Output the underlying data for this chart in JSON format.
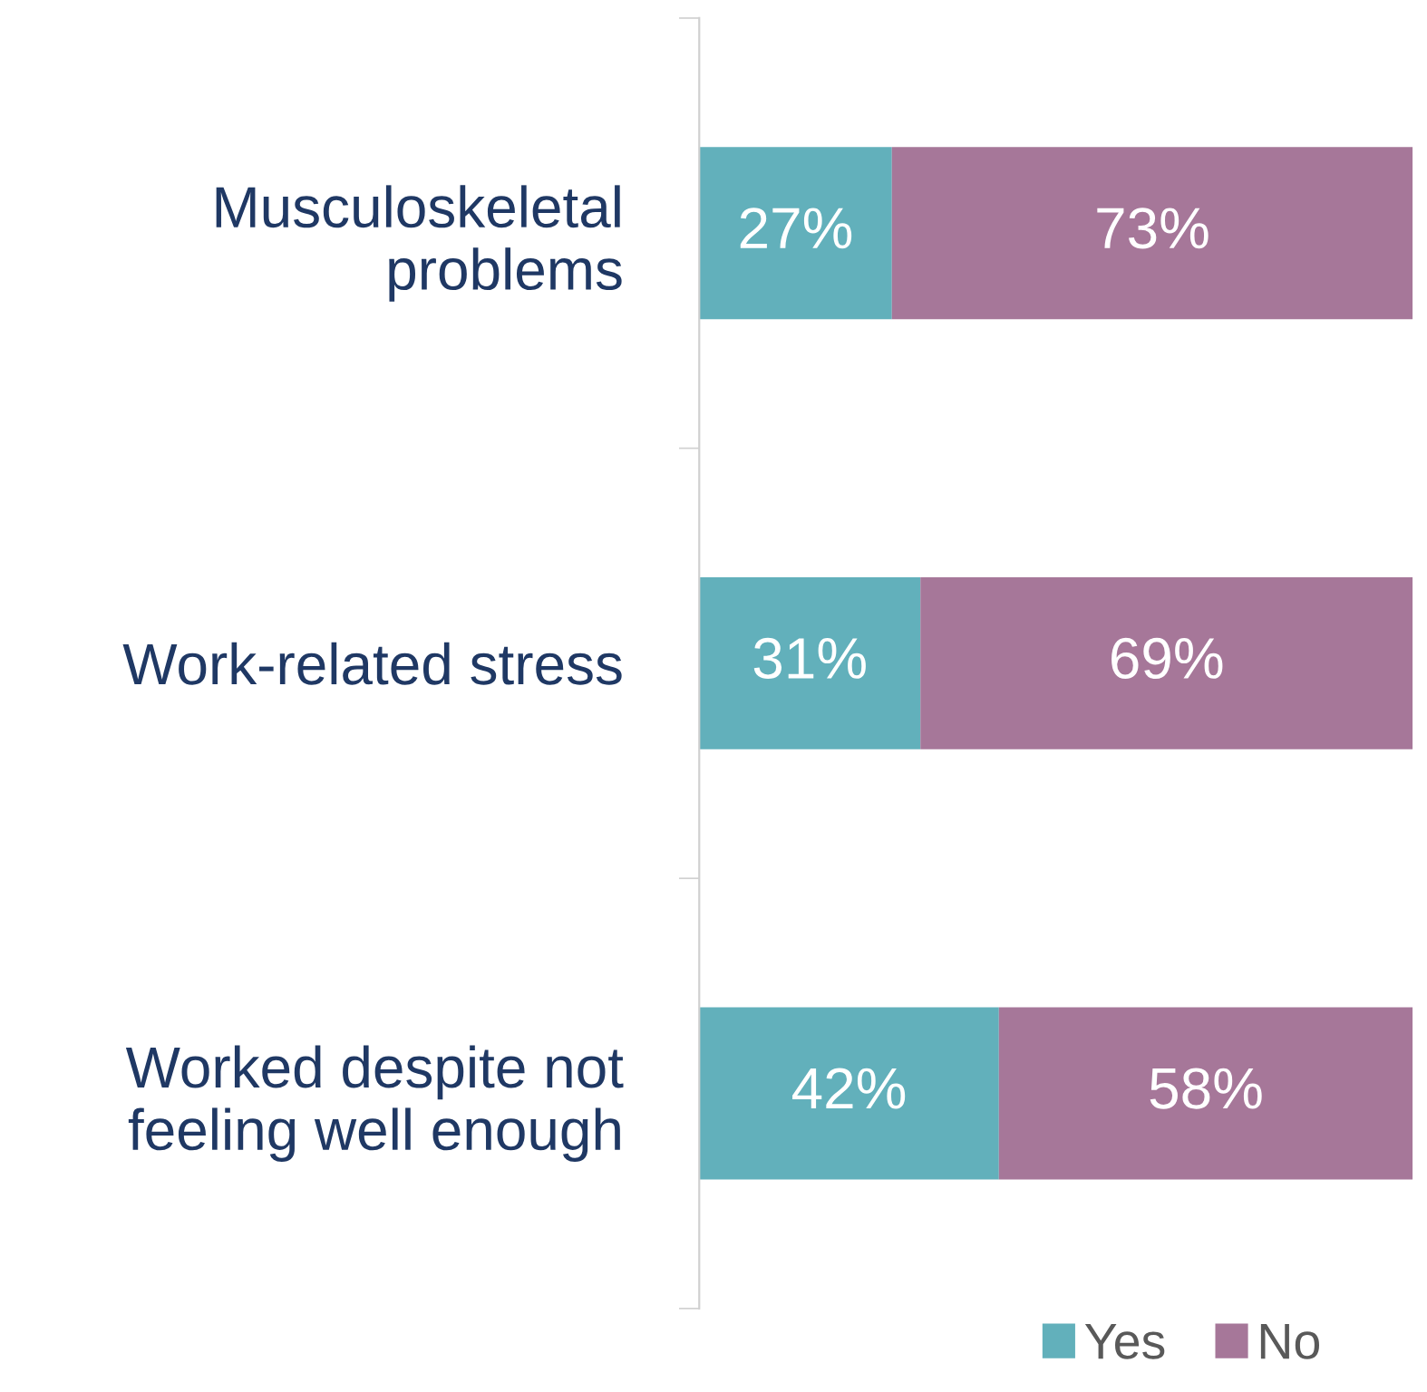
{
  "chart_data": {
    "type": "bar",
    "orientation": "horizontal",
    "stacked": true,
    "categories": [
      "Musculoskeletal\nproblems",
      "Work-related stress",
      "Worked despite not\nfeeling well enough"
    ],
    "series": [
      {
        "name": "Yes",
        "color": "#62b0bb",
        "values": [
          27,
          31,
          42
        ],
        "value_labels": [
          "27%",
          "31%",
          "42%"
        ]
      },
      {
        "name": "No",
        "color": "#a67799",
        "values": [
          73,
          69,
          58
        ],
        "value_labels": [
          "73%",
          "69%",
          "58%"
        ]
      }
    ],
    "xlim": [
      0,
      100
    ],
    "tick_labels": "y",
    "legend": "bottom right",
    "grid": false
  }
}
